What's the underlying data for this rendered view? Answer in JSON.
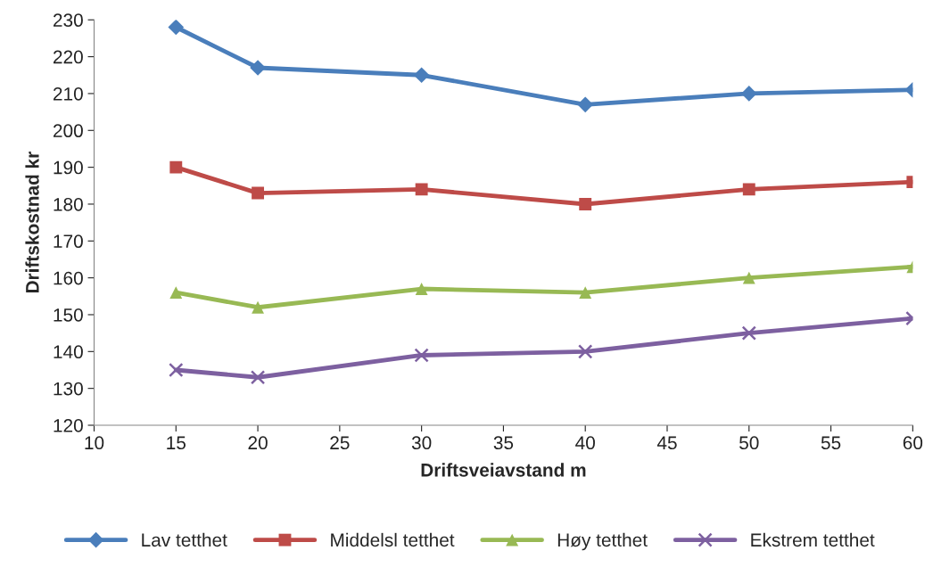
{
  "chart_data": {
    "type": "line",
    "xlabel": "Driftsveiavstand m",
    "ylabel": "Driftskostnad kr",
    "x": [
      15,
      20,
      30,
      40,
      50,
      60
    ],
    "series": [
      {
        "name": "Lav tetthet",
        "color": "#4a7ebb",
        "marker": "diamond",
        "values": [
          228,
          217,
          215,
          207,
          210,
          211
        ]
      },
      {
        "name": "Middelsl tetthet",
        "color": "#be4b48",
        "marker": "square",
        "values": [
          190,
          183,
          184,
          180,
          184,
          186
        ]
      },
      {
        "name": "Høy tetthet",
        "color": "#98b954",
        "marker": "triangle",
        "values": [
          156,
          152,
          157,
          156,
          160,
          163
        ]
      },
      {
        "name": "Ekstrem tetthet",
        "color": "#7d60a0",
        "marker": "cross",
        "values": [
          135,
          133,
          139,
          140,
          145,
          149
        ]
      }
    ],
    "xlim": [
      10,
      60
    ],
    "xticks": [
      10,
      15,
      20,
      25,
      30,
      35,
      40,
      45,
      50,
      55,
      60
    ],
    "ylim": [
      120,
      230
    ],
    "yticks": [
      120,
      130,
      140,
      150,
      160,
      170,
      180,
      190,
      200,
      210,
      220,
      230
    ],
    "grid": false,
    "legend": "bottom",
    "line_style": "solid"
  }
}
